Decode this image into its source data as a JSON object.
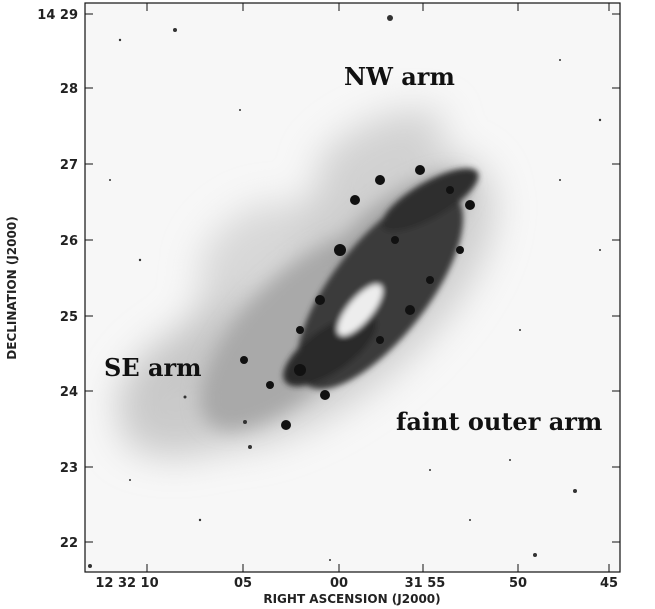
{
  "figure": {
    "y_axis_title": "DECLINATION (J2000)",
    "x_axis_title": "RIGHT ASCENSION (J2000)",
    "y_tick_labels": [
      "14 29",
      "28",
      "27",
      "26",
      "25",
      "24",
      "23",
      "22"
    ],
    "x_tick_labels": [
      "12 32 10",
      "05",
      "00",
      "31 55",
      "50",
      "45"
    ],
    "annotations": {
      "nw": "NW arm",
      "se": "SE arm",
      "outer": "faint outer arm"
    }
  }
}
